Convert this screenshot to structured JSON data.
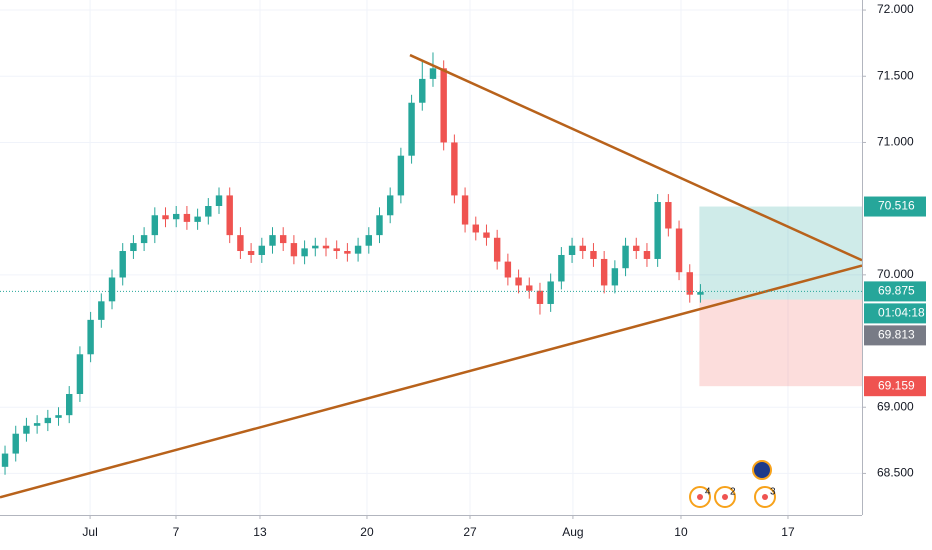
{
  "chart_data": {
    "type": "candlestick",
    "up_color": "#26a69a",
    "down_color": "#ef5350",
    "xlim": [
      -0.47,
      80.1
    ],
    "xticks": [
      {
        "value": 7.95,
        "label": "Jul"
      },
      {
        "value": 15.98,
        "label": "7"
      },
      {
        "value": 23.83,
        "label": "13"
      },
      {
        "value": 33.83,
        "label": "20"
      },
      {
        "value": 43.46,
        "label": "27"
      },
      {
        "value": 53.08,
        "label": "Aug"
      },
      {
        "value": 63.18,
        "label": "10"
      },
      {
        "value": 73.18,
        "label": "17"
      }
    ],
    "ylim": [
      68.186,
      72.076
    ],
    "yticks": [
      {
        "value": 68.5,
        "label": "68.500"
      },
      {
        "value": 69,
        "label": "69.000"
      },
      {
        "value": 70,
        "label": "70.000"
      },
      {
        "value": 71,
        "label": "71.000"
      },
      {
        "value": 71.5,
        "label": "71.500"
      },
      {
        "value": 72,
        "label": "72.000"
      }
    ],
    "grid": true,
    "open": [
      68.55,
      68.65,
      68.8,
      68.86,
      68.88,
      68.92,
      68.94,
      69.1,
      69.4,
      69.66,
      69.8,
      69.98,
      70.18,
      70.24,
      70.3,
      70.45,
      70.42,
      70.46,
      70.4,
      70.44,
      70.52,
      70.6,
      70.3,
      70.18,
      70.15,
      70.22,
      70.3,
      70.24,
      70.14,
      70.2,
      70.22,
      70.2,
      70.18,
      70.16,
      70.22,
      70.3,
      70.45,
      70.6,
      70.9,
      71.3,
      71.48,
      71.56,
      71.0,
      70.6,
      70.38,
      70.32,
      70.28,
      70.1,
      69.98,
      69.92,
      69.88,
      69.78,
      69.95,
      70.15,
      70.22,
      70.18,
      70.12,
      69.92,
      70.05,
      70.22,
      70.18,
      70.12,
      70.55,
      70.35,
      70.02,
      69.85
    ],
    "high": [
      68.71,
      68.86,
      68.92,
      68.94,
      68.98,
      69.0,
      69.16,
      69.46,
      69.72,
      69.86,
      70.04,
      70.24,
      70.3,
      70.36,
      70.51,
      70.51,
      70.52,
      70.52,
      70.5,
      70.58,
      70.66,
      70.66,
      70.36,
      70.24,
      70.28,
      70.36,
      70.36,
      70.3,
      70.26,
      70.28,
      70.28,
      70.26,
      70.24,
      70.28,
      70.36,
      70.51,
      70.66,
      70.96,
      71.36,
      71.62,
      71.68,
      71.62,
      71.06,
      70.66,
      70.44,
      70.38,
      70.34,
      70.16,
      70.04,
      69.98,
      69.94,
      70.01,
      70.21,
      70.28,
      70.28,
      70.24,
      70.18,
      70.11,
      70.28,
      70.28,
      70.24,
      70.61,
      70.61,
      70.41,
      70.08,
      69.93
    ],
    "low": [
      68.49,
      68.59,
      68.74,
      68.8,
      68.82,
      68.86,
      68.88,
      69.04,
      69.34,
      69.6,
      69.74,
      69.92,
      70.12,
      70.18,
      70.24,
      70.36,
      70.36,
      70.34,
      70.34,
      70.38,
      70.46,
      70.24,
      70.12,
      70.09,
      70.09,
      70.16,
      70.18,
      70.08,
      70.08,
      70.14,
      70.14,
      70.12,
      70.1,
      70.1,
      70.16,
      70.24,
      70.39,
      70.54,
      70.84,
      71.24,
      71.42,
      70.94,
      70.54,
      70.32,
      70.26,
      70.22,
      70.04,
      69.92,
      69.86,
      69.82,
      69.7,
      69.72,
      69.89,
      70.09,
      70.12,
      70.06,
      69.86,
      69.86,
      69.99,
      70.12,
      70.06,
      70.06,
      70.29,
      69.96,
      69.79,
      69.79
    ],
    "close": [
      68.65,
      68.8,
      68.86,
      68.88,
      68.92,
      68.94,
      69.1,
      69.4,
      69.66,
      69.8,
      69.98,
      70.18,
      70.24,
      70.3,
      70.45,
      70.42,
      70.46,
      70.4,
      70.44,
      70.52,
      70.6,
      70.3,
      70.18,
      70.15,
      70.22,
      70.3,
      70.24,
      70.14,
      70.2,
      70.22,
      70.2,
      70.18,
      70.16,
      70.22,
      70.3,
      70.45,
      70.6,
      70.9,
      71.3,
      71.48,
      71.56,
      71.0,
      70.6,
      70.38,
      70.32,
      70.28,
      70.1,
      69.98,
      69.92,
      69.88,
      69.78,
      69.95,
      70.15,
      70.22,
      70.18,
      70.12,
      69.92,
      70.05,
      70.22,
      70.18,
      70.12,
      70.55,
      70.35,
      70.02,
      69.85,
      69.87
    ],
    "trendlines": [
      {
        "color": "#b8621b",
        "x": [
          37.85,
          80.1
        ],
        "y": [
          71.66,
          70.11
        ]
      },
      {
        "color": "#b8621b",
        "x": [
          -0.47,
          80.1
        ],
        "y": [
          68.32,
          70.07
        ]
      }
    ],
    "position": {
      "start": 64.9,
      "target": {
        "value": 70.516,
        "label": "70.516"
      },
      "entry": {
        "value": 69.813,
        "label": "69.813"
      },
      "stop": {
        "value": 69.159,
        "label": "69.159"
      }
    },
    "last_price": {
      "value": 69.875,
      "label": "69.875"
    },
    "countdown": "01:04:18",
    "events": [
      "4",
      "2",
      "3"
    ]
  }
}
